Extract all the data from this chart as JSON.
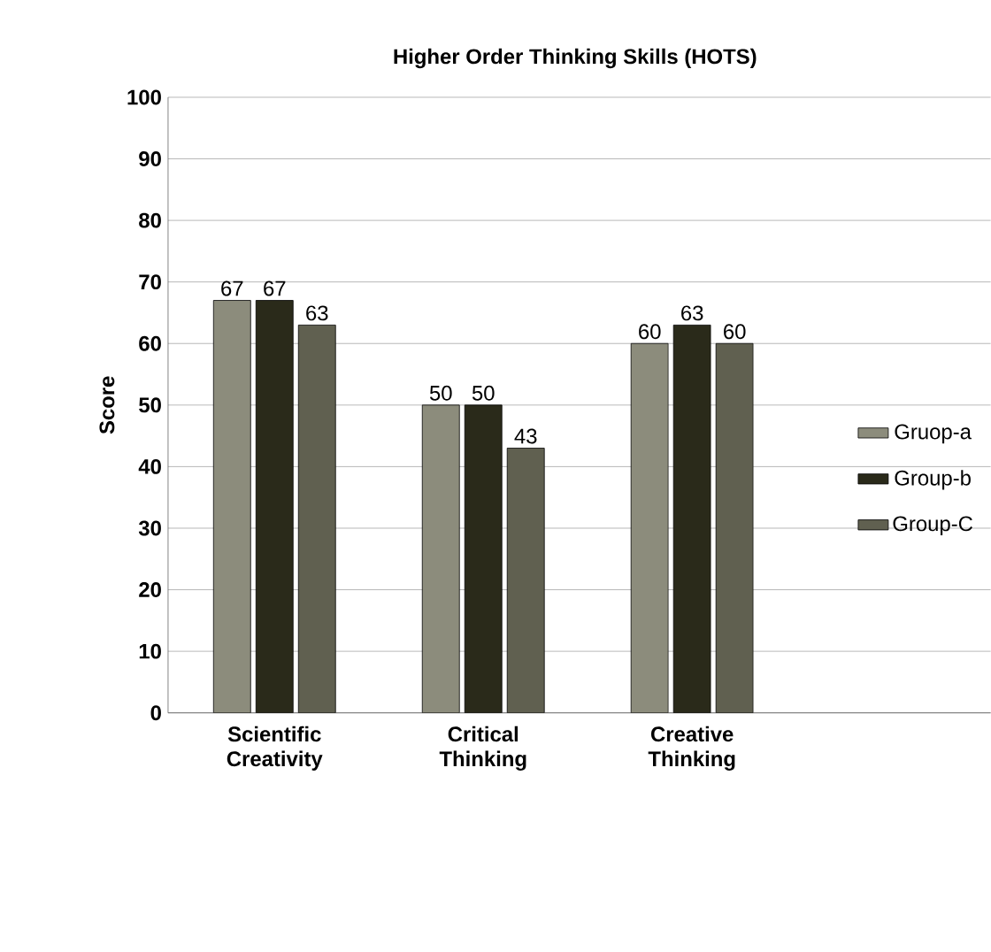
{
  "chart_data": {
    "type": "bar",
    "title": "Higher Order Thinking Skills (HOTS)",
    "ylabel": "Score",
    "categories": [
      "Scientific Creativity",
      "Critical Thinking",
      "Creative Thinking"
    ],
    "series": [
      {
        "name": "Gruop-a",
        "color": "#8c8c7c",
        "values": [
          67,
          50,
          60
        ]
      },
      {
        "name": "Group-b",
        "color": "#2a2a1a",
        "values": [
          67,
          50,
          63
        ]
      },
      {
        "name": "Group-C",
        "color": "#606050",
        "values": [
          63,
          43,
          60
        ]
      }
    ],
    "ylim": [
      0,
      100
    ],
    "yticks": [
      0,
      10,
      20,
      30,
      40,
      50,
      60,
      70,
      80,
      90,
      100
    ],
    "grid": "y",
    "legend": "right",
    "data_labels": true
  }
}
